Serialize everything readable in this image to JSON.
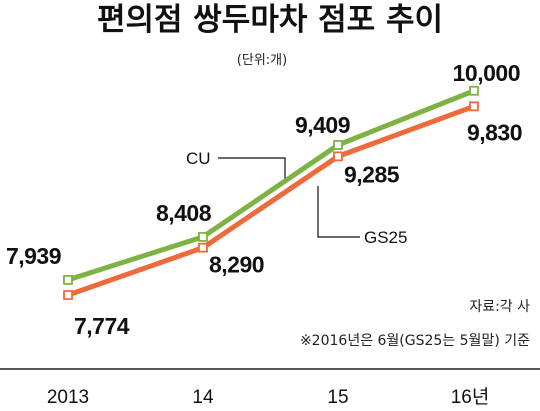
{
  "chart_data": {
    "type": "line",
    "title": "편의점 쌍두마차 점포 추이",
    "unit_note": "(단위:개)",
    "categories": [
      "2013",
      "14",
      "15",
      "16년"
    ],
    "series": [
      {
        "name": "CU",
        "values": [
          7939,
          8408,
          9409,
          10000
        ],
        "labels": [
          "7,939",
          "8,408",
          "9,409",
          "10,000"
        ],
        "color": "#7cb342"
      },
      {
        "name": "GS25",
        "values": [
          7774,
          8290,
          9285,
          9830
        ],
        "labels": [
          "7,774",
          "8,290",
          "9,285",
          "9,830"
        ],
        "color": "#ef6a3a"
      }
    ],
    "ylim": [
      7600,
      10150
    ],
    "grid": false,
    "source": "자료:각 사",
    "footnote": "※2016년은 6월(GS25는 5월말) 기준"
  }
}
